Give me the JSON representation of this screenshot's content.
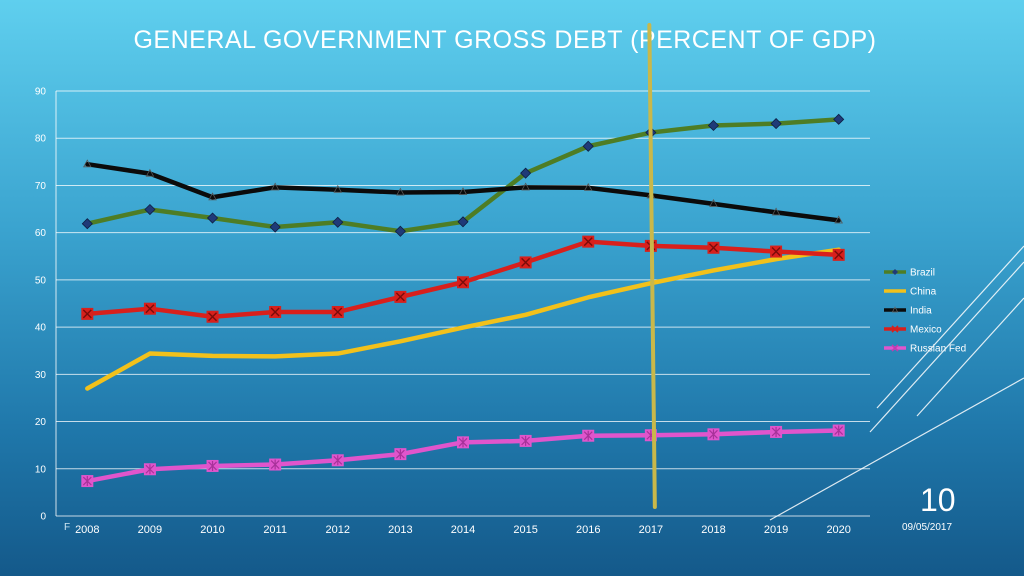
{
  "slide": {
    "title": "GENERAL GOVERNMENT GROSS DEBT (PERCENT OF GDP)",
    "number": "10",
    "date": "09/05/2017",
    "footer": "F"
  },
  "colors": {
    "Brazil": "#4e7d25",
    "China": "#f2c11b",
    "India": "#0b0b0b",
    "Mexico": "#d8201c",
    "Russian Fed": "#e055cc",
    "marker_brazil": "#1f3a78",
    "vertical_line": "#c9b84a"
  },
  "chart_data": {
    "type": "line",
    "x": [
      "2008",
      "2009",
      "2010",
      "2011",
      "2012",
      "2013",
      "2014",
      "2015",
      "2016",
      "2017",
      "2018",
      "2019",
      "2020"
    ],
    "ylim": [
      0,
      90
    ],
    "yticks": [
      "0",
      "10",
      "20",
      "30",
      "40",
      "50",
      "60",
      "70",
      "80",
      "90"
    ],
    "grid": true,
    "legend_position": "right",
    "vertical_marker_at": "2017",
    "series": [
      {
        "name": "Brazil",
        "values": [
          61.9,
          64.9,
          63.1,
          61.2,
          62.2,
          60.3,
          62.3,
          72.6,
          78.3,
          81.2,
          82.7,
          83.1,
          84.0
        ]
      },
      {
        "name": "China",
        "values": [
          27.0,
          34.4,
          33.9,
          33.8,
          34.4,
          37.0,
          39.9,
          42.6,
          46.3,
          49.3,
          52.0,
          54.4,
          56.4
        ]
      },
      {
        "name": "India",
        "values": [
          74.5,
          72.5,
          67.5,
          69.6,
          69.1,
          68.5,
          68.6,
          69.6,
          69.5,
          67.9,
          66.1,
          64.3,
          62.6
        ]
      },
      {
        "name": "Mexico",
        "values": [
          42.8,
          43.9,
          42.2,
          43.2,
          43.2,
          46.4,
          49.5,
          53.7,
          58.1,
          57.2,
          56.8,
          56.0,
          55.3
        ]
      },
      {
        "name": "Russian Fed",
        "values": [
          7.4,
          9.9,
          10.6,
          10.9,
          11.8,
          13.1,
          15.6,
          15.9,
          17.0,
          17.1,
          17.3,
          17.8,
          18.1
        ]
      }
    ]
  }
}
